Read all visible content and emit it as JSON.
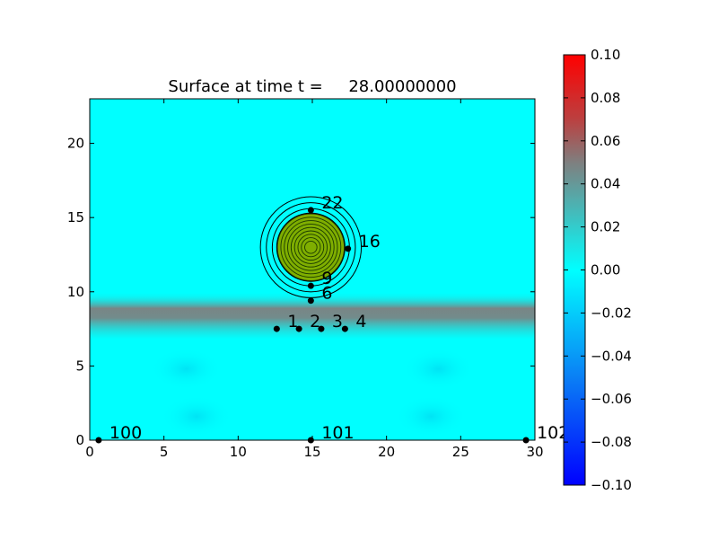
{
  "chart_data": {
    "type": "heatmap",
    "title": "Surface at time t =     28.00000000",
    "xlabel": "",
    "ylabel": "",
    "xlim": [
      0,
      30
    ],
    "ylim": [
      0,
      23
    ],
    "x_ticks": [
      0,
      5,
      10,
      15,
      20,
      25,
      30
    ],
    "y_ticks": [
      0,
      5,
      10,
      15,
      20
    ],
    "field": {
      "background_value": 0.0,
      "band": {
        "y_from": 8.6,
        "y_to": 9.5,
        "value": 0.05
      },
      "lower_band": {
        "y_from": 6.8,
        "y_to": 8.6,
        "value": 0.015
      }
    },
    "contours": {
      "center": [
        14.9,
        13.0
      ],
      "radii": [
        2.6,
        3.0,
        3.4
      ],
      "filled_radius": 2.3,
      "filled_color": "#7fae00",
      "inner_rings": 9
    },
    "gauges": [
      {
        "label": "1",
        "x": 12.6,
        "y": 7.5
      },
      {
        "label": "2",
        "x": 14.1,
        "y": 7.5
      },
      {
        "label": "3",
        "x": 15.6,
        "y": 7.5
      },
      {
        "label": "4",
        "x": 17.2,
        "y": 7.5
      },
      {
        "label": "6",
        "x": 14.9,
        "y": 9.4
      },
      {
        "label": "9",
        "x": 14.9,
        "y": 10.4
      },
      {
        "label": "16",
        "x": 17.4,
        "y": 12.9
      },
      {
        "label": "22",
        "x": 14.9,
        "y": 15.5
      },
      {
        "label": "100",
        "x": 0.6,
        "y": 0.0
      },
      {
        "label": "101",
        "x": 14.9,
        "y": 0.0
      },
      {
        "label": "102",
        "x": 29.4,
        "y": 0.0
      }
    ],
    "colorbar": {
      "min": -0.1,
      "max": 0.1,
      "ticks": [
        0.1,
        0.08,
        0.06,
        0.04,
        0.02,
        0.0,
        -0.02,
        -0.04,
        -0.06,
        -0.08,
        -0.1
      ],
      "tick_labels": [
        "0.10",
        "0.08",
        "0.06",
        "0.04",
        "0.02",
        "0.00",
        "−0.02",
        "−0.04",
        "−0.06",
        "−0.08",
        "−0.10"
      ],
      "colors": {
        "bottom": "#0000ff",
        "low": "#0a7ff5",
        "zero": "#00ffff",
        "mid": "#7f7f7f",
        "high": "#bb4040",
        "top": "#ff0000"
      }
    }
  }
}
